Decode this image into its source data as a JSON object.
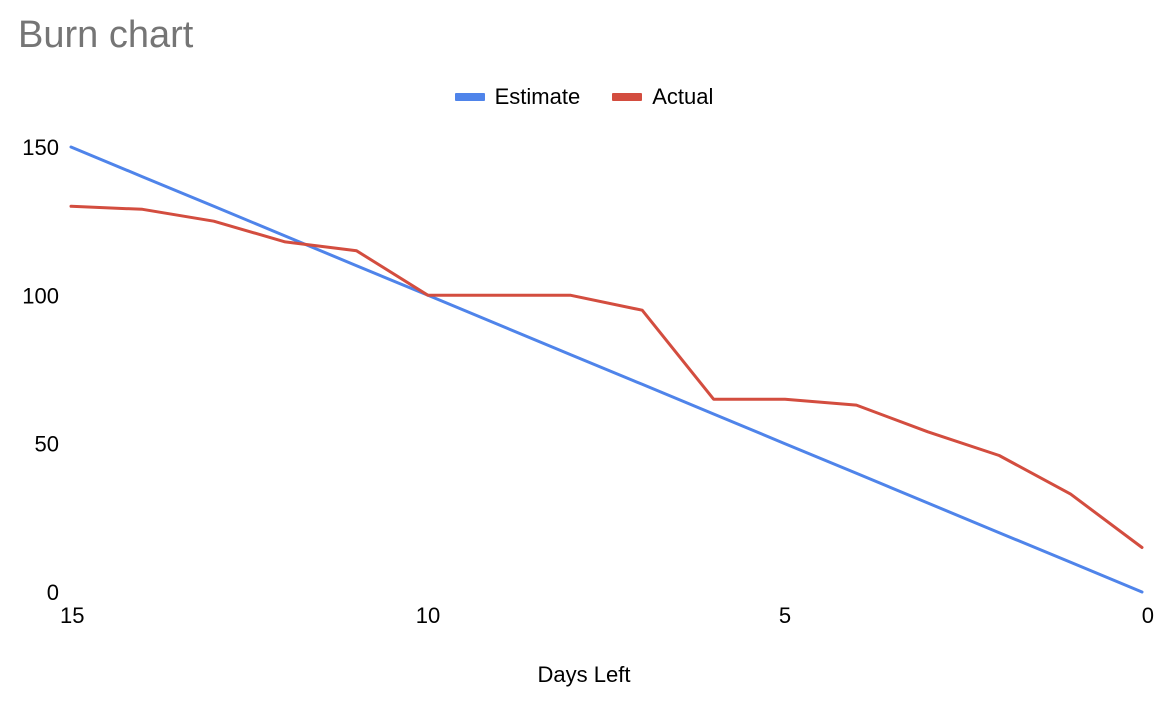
{
  "chart_data": {
    "type": "line",
    "title": "Burn chart",
    "xlabel": "Days Left",
    "ylabel": "",
    "x": [
      15,
      14,
      13,
      12,
      11,
      10,
      9,
      8,
      7,
      6,
      5,
      4,
      3,
      2,
      1,
      0
    ],
    "xlim": [
      15,
      0
    ],
    "ylim": [
      0,
      150
    ],
    "x_ticks": [
      15,
      10,
      5,
      0
    ],
    "y_ticks": [
      0,
      50,
      100,
      150
    ],
    "grid": false,
    "legend_position": "top",
    "series": [
      {
        "name": "Estimate",
        "color": "#4f84ea",
        "values": [
          150,
          140,
          130,
          120,
          110,
          100,
          90,
          80,
          70,
          60,
          50,
          40,
          30,
          20,
          10,
          0
        ]
      },
      {
        "name": "Actual",
        "color": "#d34d3f",
        "values": [
          130,
          129,
          125,
          118,
          115,
          100,
          100,
          100,
          95,
          65,
          65,
          63,
          54,
          46,
          33,
          15
        ]
      }
    ]
  }
}
